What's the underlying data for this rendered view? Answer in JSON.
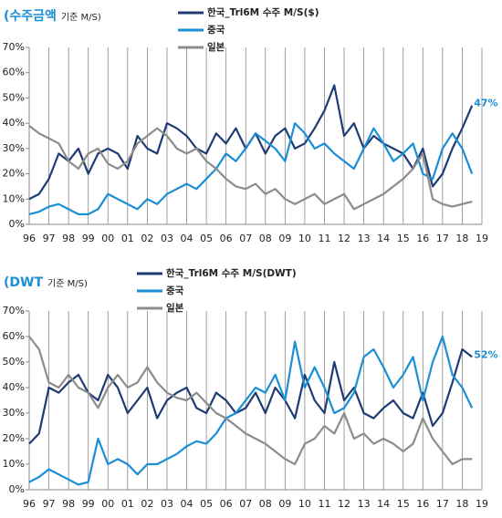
{
  "chart_data": [
    {
      "type": "line",
      "title": "(수주금액",
      "subtitle": "기준 M/S)",
      "annotation": "47%",
      "x": [
        1996,
        1996.5,
        1997,
        1997.5,
        1998,
        1998.5,
        1999,
        1999.5,
        2000,
        2000.5,
        2001,
        2001.5,
        2002,
        2002.5,
        2003,
        2003.5,
        2004,
        2004.5,
        2005,
        2005.5,
        2006,
        2006.5,
        2007,
        2007.5,
        2008,
        2008.5,
        2009,
        2009.5,
        2010,
        2010.5,
        2011,
        2011.5,
        2012,
        2012.5,
        2013,
        2013.5,
        2014,
        2014.5,
        2015,
        2015.5,
        2016,
        2016.5,
        2017,
        2017.5,
        2018,
        2018.5
      ],
      "series": [
        {
          "name": "한국_Trl6M 수주 M/S($)",
          "color": "#1f3b73",
          "values": [
            10,
            12,
            18,
            28,
            25,
            30,
            20,
            28,
            30,
            28,
            22,
            35,
            30,
            28,
            40,
            38,
            35,
            30,
            28,
            36,
            32,
            38,
            30,
            36,
            28,
            35,
            38,
            30,
            32,
            38,
            45,
            55,
            35,
            40,
            30,
            35,
            32,
            30,
            28,
            22,
            30,
            15,
            20,
            30,
            38,
            47
          ]
        },
        {
          "name": "중국",
          "color": "#1a8fd6",
          "values": [
            4,
            5,
            7,
            8,
            6,
            4,
            4,
            6,
            12,
            10,
            8,
            6,
            10,
            8,
            12,
            14,
            16,
            14,
            18,
            22,
            28,
            25,
            30,
            36,
            33,
            30,
            25,
            40,
            36,
            30,
            32,
            28,
            25,
            22,
            30,
            38,
            32,
            25,
            28,
            32,
            20,
            18,
            30,
            36,
            30,
            20
          ]
        },
        {
          "name": "일본",
          "color": "#8c8c8c",
          "values": [
            39,
            36,
            34,
            32,
            25,
            22,
            28,
            30,
            24,
            22,
            25,
            32,
            35,
            38,
            35,
            30,
            28,
            30,
            25,
            22,
            18,
            15,
            14,
            16,
            12,
            14,
            10,
            8,
            10,
            12,
            8,
            10,
            12,
            6,
            8,
            10,
            12,
            15,
            18,
            22,
            28,
            10,
            8,
            7,
            8,
            9
          ]
        }
      ],
      "xlim": [
        1996,
        2019
      ],
      "xticks": [
        {
          "value": 1996,
          "label": "96"
        },
        {
          "value": 1997,
          "label": "97"
        },
        {
          "value": 1998,
          "label": "98"
        },
        {
          "value": 1999,
          "label": "99"
        },
        {
          "value": 2000,
          "label": "00"
        },
        {
          "value": 2001,
          "label": "01"
        },
        {
          "value": 2002,
          "label": "02"
        },
        {
          "value": 2003,
          "label": "03"
        },
        {
          "value": 2004,
          "label": "04"
        },
        {
          "value": 2005,
          "label": "05"
        },
        {
          "value": 2006,
          "label": "06"
        },
        {
          "value": 2007,
          "label": "07"
        },
        {
          "value": 2008,
          "label": "08"
        },
        {
          "value": 2009,
          "label": "09"
        },
        {
          "value": 2010,
          "label": "10"
        },
        {
          "value": 2011,
          "label": "11"
        },
        {
          "value": 2012,
          "label": "12"
        },
        {
          "value": 2013,
          "label": "13"
        },
        {
          "value": 2014,
          "label": "14"
        },
        {
          "value": 2015,
          "label": "15"
        },
        {
          "value": 2016,
          "label": "16"
        },
        {
          "value": 2017,
          "label": "17"
        },
        {
          "value": 2018,
          "label": "18"
        },
        {
          "value": 2019,
          "label": "19"
        }
      ],
      "ylim": [
        0,
        70
      ],
      "yticks": [
        {
          "value": 0,
          "label": "0%"
        },
        {
          "value": 10,
          "label": "10%"
        },
        {
          "value": 20,
          "label": "20%"
        },
        {
          "value": 30,
          "label": "30%"
        },
        {
          "value": 40,
          "label": "40%"
        },
        {
          "value": 50,
          "label": "50%"
        },
        {
          "value": 60,
          "label": "60%"
        },
        {
          "value": 70,
          "label": "70%"
        }
      ],
      "grid": "x"
    },
    {
      "type": "line",
      "title": "(DWT",
      "subtitle": "기준 M/S)",
      "annotation": "52%",
      "x": [
        1996,
        1996.5,
        1997,
        1997.5,
        1998,
        1998.5,
        1999,
        1999.5,
        2000,
        2000.5,
        2001,
        2001.5,
        2002,
        2002.5,
        2003,
        2003.5,
        2004,
        2004.5,
        2005,
        2005.5,
        2006,
        2006.5,
        2007,
        2007.5,
        2008,
        2008.5,
        2009,
        2009.5,
        2010,
        2010.5,
        2011,
        2011.5,
        2012,
        2012.5,
        2013,
        2013.5,
        2014,
        2014.5,
        2015,
        2015.5,
        2016,
        2016.5,
        2017,
        2017.5,
        2018,
        2018.5
      ],
      "series": [
        {
          "name": "한국_Trl6M 수주 M/S(DWT)",
          "color": "#1f3b73",
          "values": [
            18,
            22,
            40,
            38,
            42,
            45,
            38,
            35,
            45,
            40,
            30,
            35,
            40,
            28,
            35,
            38,
            40,
            32,
            30,
            38,
            35,
            30,
            32,
            38,
            30,
            40,
            35,
            28,
            45,
            35,
            30,
            50,
            35,
            40,
            30,
            28,
            32,
            35,
            30,
            28,
            38,
            25,
            30,
            42,
            55,
            52
          ]
        },
        {
          "name": "중국",
          "color": "#1a8fd6",
          "values": [
            3,
            5,
            8,
            6,
            4,
            2,
            3,
            20,
            10,
            12,
            10,
            6,
            10,
            10,
            12,
            14,
            17,
            19,
            18,
            22,
            28,
            30,
            35,
            40,
            38,
            45,
            35,
            58,
            40,
            48,
            40,
            30,
            32,
            38,
            52,
            55,
            48,
            40,
            45,
            52,
            35,
            50,
            60,
            45,
            40,
            32
          ]
        },
        {
          "name": "일본",
          "color": "#8c8c8c",
          "values": [
            60,
            55,
            42,
            40,
            45,
            40,
            38,
            32,
            40,
            45,
            40,
            42,
            48,
            42,
            38,
            36,
            35,
            38,
            34,
            30,
            28,
            25,
            22,
            20,
            18,
            15,
            12,
            10,
            18,
            20,
            25,
            22,
            30,
            20,
            22,
            18,
            20,
            18,
            15,
            18,
            28,
            20,
            15,
            10,
            12,
            12
          ]
        }
      ],
      "xlim": [
        1996,
        2019
      ],
      "xticks": [
        {
          "value": 1996,
          "label": "96"
        },
        {
          "value": 1997,
          "label": "97"
        },
        {
          "value": 1998,
          "label": "98"
        },
        {
          "value": 1999,
          "label": "99"
        },
        {
          "value": 2000,
          "label": "00"
        },
        {
          "value": 2001,
          "label": "01"
        },
        {
          "value": 2002,
          "label": "02"
        },
        {
          "value": 2003,
          "label": "03"
        },
        {
          "value": 2004,
          "label": "04"
        },
        {
          "value": 2005,
          "label": "05"
        },
        {
          "value": 2006,
          "label": "06"
        },
        {
          "value": 2007,
          "label": "07"
        },
        {
          "value": 2008,
          "label": "08"
        },
        {
          "value": 2009,
          "label": "09"
        },
        {
          "value": 2010,
          "label": "10"
        },
        {
          "value": 2011,
          "label": "11"
        },
        {
          "value": 2012,
          "label": "12"
        },
        {
          "value": 2013,
          "label": "13"
        },
        {
          "value": 2014,
          "label": "14"
        },
        {
          "value": 2015,
          "label": "15"
        },
        {
          "value": 2016,
          "label": "16"
        },
        {
          "value": 2017,
          "label": "17"
        },
        {
          "value": 2018,
          "label": "18"
        },
        {
          "value": 2019,
          "label": "19"
        }
      ],
      "ylim": [
        0,
        70
      ],
      "yticks": [
        {
          "value": 0,
          "label": "0%"
        },
        {
          "value": 10,
          "label": "10%"
        },
        {
          "value": 20,
          "label": "20%"
        },
        {
          "value": 30,
          "label": "30%"
        },
        {
          "value": 40,
          "label": "40%"
        },
        {
          "value": 50,
          "label": "50%"
        },
        {
          "value": 60,
          "label": "60%"
        },
        {
          "value": 70,
          "label": "70%"
        }
      ],
      "grid": "x"
    }
  ]
}
